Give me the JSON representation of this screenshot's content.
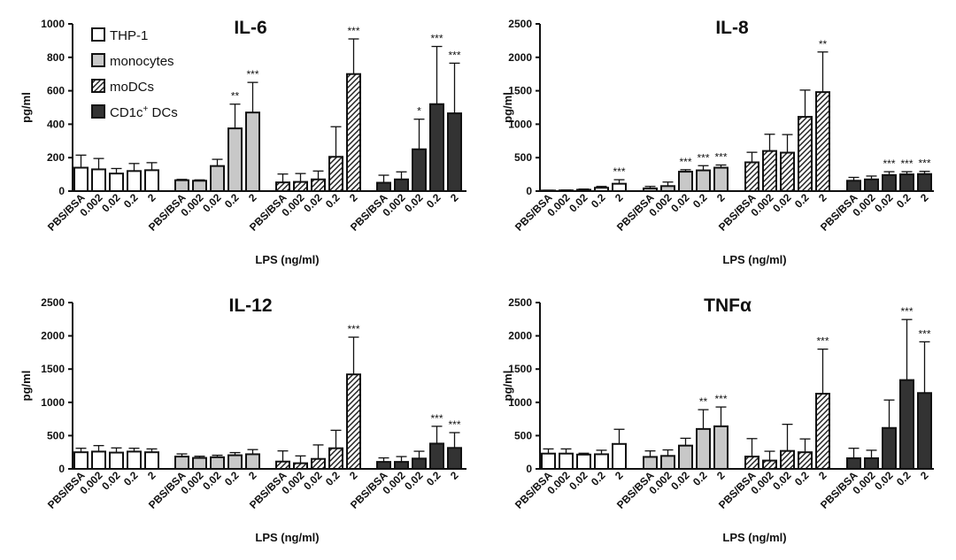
{
  "legend": {
    "entries": [
      {
        "key": "thp1",
        "label": "THP-1",
        "fill": "#ffffff",
        "pattern": "none"
      },
      {
        "key": "monocytes",
        "label": "monocytes",
        "fill": "#c8c8c8",
        "pattern": "none"
      },
      {
        "key": "modcs",
        "label": "moDCs",
        "fill": "#ffffff",
        "pattern": "hatch"
      },
      {
        "key": "cd1c",
        "label": "CD1c",
        "superscript": "+",
        "label_suffix": " DCs",
        "fill": "#333333",
        "pattern": "none"
      }
    ]
  },
  "chart_data": [
    {
      "type": "bar",
      "title": "IL-6",
      "xlabel": "LPS (ng/ml)",
      "ylabel": "pg/ml",
      "ylim": [
        0,
        1000
      ],
      "yticks": [
        0,
        200,
        400,
        600,
        800,
        1000
      ],
      "categories": [
        "PBS/BSA",
        "0.002",
        "0.02",
        "0.2",
        "2"
      ],
      "groups": [
        {
          "name": "THP-1",
          "values": [
            140,
            130,
            105,
            120,
            125
          ],
          "errors": [
            75,
            65,
            30,
            45,
            45
          ],
          "sig": [
            "",
            "",
            "",
            "",
            ""
          ]
        },
        {
          "name": "monocytes",
          "values": [
            65,
            62,
            150,
            375,
            470
          ],
          "errors": [
            5,
            5,
            40,
            145,
            180
          ],
          "sig": [
            "",
            "",
            "",
            "**",
            "***"
          ]
        },
        {
          "name": "moDCs",
          "values": [
            52,
            55,
            70,
            205,
            700
          ],
          "errors": [
            50,
            50,
            50,
            180,
            210
          ],
          "sig": [
            "",
            "",
            "",
            "",
            "***"
          ]
        },
        {
          "name": "CD1c+ DCs",
          "values": [
            50,
            70,
            250,
            520,
            465
          ],
          "errors": [
            45,
            45,
            180,
            345,
            300
          ],
          "sig": [
            "",
            "",
            "*",
            "***",
            "***"
          ]
        }
      ]
    },
    {
      "type": "bar",
      "title": "IL-8",
      "xlabel": "LPS (ng/ml)",
      "ylabel": "pg/ml",
      "ylim": [
        0,
        2500
      ],
      "yticks": [
        0,
        500,
        1000,
        1500,
        2000,
        2500
      ],
      "categories": [
        "PBS/BSA",
        "0.002",
        "0.02",
        "0.2",
        "2"
      ],
      "groups": [
        {
          "name": "THP-1",
          "values": [
            8,
            10,
            20,
            50,
            110
          ],
          "errors": [
            5,
            5,
            10,
            20,
            60
          ],
          "sig": [
            "",
            "",
            "",
            "",
            "***"
          ]
        },
        {
          "name": "monocytes",
          "values": [
            40,
            75,
            290,
            310,
            350
          ],
          "errors": [
            30,
            60,
            30,
            70,
            40
          ],
          "sig": [
            "",
            "",
            "***",
            "***",
            "***"
          ]
        },
        {
          "name": "moDCs",
          "values": [
            430,
            600,
            575,
            1110,
            1480
          ],
          "errors": [
            150,
            250,
            270,
            400,
            600
          ],
          "sig": [
            "",
            "",
            "",
            "",
            "**"
          ]
        },
        {
          "name": "CD1c+ DCs",
          "values": [
            155,
            175,
            240,
            250,
            255
          ],
          "errors": [
            50,
            50,
            50,
            40,
            40
          ],
          "sig": [
            "",
            "",
            "***",
            "***",
            "***"
          ]
        }
      ]
    },
    {
      "type": "bar",
      "title": "IL-12",
      "xlabel": "LPS (ng/ml)",
      "ylabel": "pg/ml",
      "ylim": [
        0,
        2500
      ],
      "yticks": [
        0,
        500,
        1000,
        1500,
        2000,
        2500
      ],
      "categories": [
        "PBS/BSA",
        "0.002",
        "0.02",
        "0.2",
        "2"
      ],
      "groups": [
        {
          "name": "THP-1",
          "values": [
            250,
            260,
            245,
            260,
            250
          ],
          "errors": [
            60,
            90,
            70,
            50,
            50
          ],
          "sig": [
            "",
            "",
            "",
            "",
            ""
          ]
        },
        {
          "name": "monocytes",
          "values": [
            185,
            165,
            175,
            205,
            220
          ],
          "errors": [
            40,
            25,
            30,
            40,
            70
          ],
          "sig": [
            "",
            "",
            "",
            "",
            ""
          ]
        },
        {
          "name": "moDCs",
          "values": [
            110,
            85,
            150,
            310,
            1420
          ],
          "errors": [
            160,
            110,
            210,
            270,
            560
          ],
          "sig": [
            "",
            "",
            "",
            "",
            "***"
          ]
        },
        {
          "name": "CD1c+ DCs",
          "values": [
            105,
            105,
            155,
            380,
            315
          ],
          "errors": [
            60,
            80,
            110,
            260,
            230
          ],
          "sig": [
            "",
            "",
            "",
            "***",
            "***"
          ]
        }
      ]
    },
    {
      "type": "bar",
      "title": "TNFα",
      "xlabel": "LPS (ng/ml)",
      "ylabel": "pg/ml",
      "ylim": [
        0,
        2500
      ],
      "yticks": [
        0,
        500,
        1000,
        1500,
        2000,
        2500
      ],
      "categories": [
        "PBS/BSA",
        "0.002",
        "0.02",
        "0.2",
        "2"
      ],
      "groups": [
        {
          "name": "THP-1",
          "values": [
            230,
            230,
            215,
            220,
            375
          ],
          "errors": [
            70,
            70,
            20,
            60,
            220
          ],
          "sig": [
            "",
            "",
            "",
            "",
            ""
          ]
        },
        {
          "name": "monocytes",
          "values": [
            180,
            195,
            350,
            600,
            640
          ],
          "errors": [
            90,
            90,
            110,
            290,
            290
          ],
          "sig": [
            "",
            "",
            "",
            "**",
            "***"
          ]
        },
        {
          "name": "moDCs",
          "values": [
            185,
            125,
            270,
            250,
            1130
          ],
          "errors": [
            270,
            140,
            400,
            200,
            670
          ],
          "sig": [
            "",
            "",
            "",
            "",
            "***"
          ]
        },
        {
          "name": "CD1c+ DCs",
          "values": [
            160,
            160,
            615,
            1335,
            1140
          ],
          "errors": [
            150,
            120,
            420,
            910,
            770
          ],
          "sig": [
            "",
            "",
            "",
            "***",
            "***"
          ]
        }
      ]
    }
  ]
}
